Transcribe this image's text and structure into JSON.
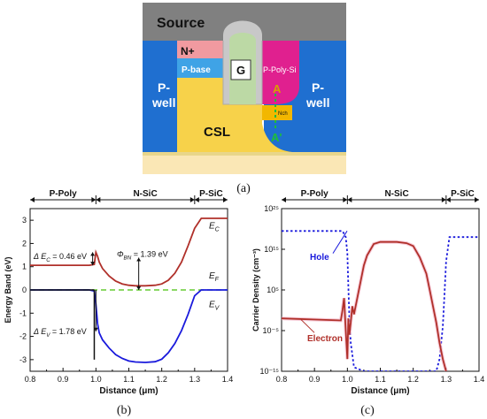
{
  "figure": {
    "sub_labels": {
      "a": "(a)",
      "b": "(b)",
      "c": "(c)"
    }
  },
  "device": {
    "labels": {
      "source": "Source",
      "n_plus": "N+",
      "p_base": "P-base",
      "gate": "G",
      "p_poly_si": "P-Poly-Si",
      "p_well_left": "P-\nwell",
      "p_well_right": "P-\nwell",
      "csl": "CSL",
      "nch": "Nch",
      "a_point": "A",
      "a_prime": "A'"
    },
    "colors": {
      "source": "#808080",
      "n_plus": "#f19aa0",
      "p_base": "#3fa3e6",
      "p_well": "#1f6fd0",
      "gate_oxide": "#c8c8c8",
      "gate": "#bcd9a5",
      "p_poly": "#e0208f",
      "csl": "#f7d24a",
      "drift": "#fae7b5",
      "nch": "#f2b700",
      "a_color": "#d6a000",
      "a_prime_color": "#1dbf3a"
    }
  },
  "chart_data": [
    {
      "type": "line",
      "panel": "b",
      "xlabel": "Distance (μm)",
      "ylabel": "Energy Band (eV)",
      "xlim": [
        0.8,
        1.4
      ],
      "ylim": [
        -3.5,
        3.5
      ],
      "xticks": [
        "0.8",
        "0.9",
        "1.0",
        "1.1",
        "1.2",
        "1.3",
        "1.4"
      ],
      "yticks": [
        "-3",
        "-2",
        "-1",
        "0",
        "1",
        "2",
        "3"
      ],
      "regions": [
        {
          "label": "P-Poly",
          "from": 0.8,
          "to": 1.0
        },
        {
          "label": "N-SiC",
          "from": 1.0,
          "to": 1.3
        },
        {
          "label": "P-SiC",
          "from": 1.3,
          "to": 1.4
        }
      ],
      "series": [
        {
          "name": "E_C",
          "color": "#b0302a",
          "x": [
            0.8,
            0.98,
            0.995,
            1.0,
            1.005,
            1.01,
            1.02,
            1.04,
            1.06,
            1.08,
            1.1,
            1.12,
            1.15,
            1.18,
            1.2,
            1.22,
            1.24,
            1.26,
            1.28,
            1.3,
            1.32,
            1.4
          ],
          "y": [
            1.06,
            1.06,
            1.1,
            1.62,
            1.45,
            1.2,
            0.92,
            0.6,
            0.38,
            0.26,
            0.2,
            0.18,
            0.18,
            0.2,
            0.26,
            0.42,
            0.72,
            1.2,
            1.9,
            2.65,
            3.08,
            3.08
          ]
        },
        {
          "name": "E_F",
          "color": "#66cc33",
          "x": [
            0.8,
            1.4
          ],
          "y": [
            0.0,
            0.0
          ]
        },
        {
          "name": "E_V",
          "color": "#1a1adc",
          "x": [
            0.8,
            0.98,
            0.995,
            1.0,
            1.005,
            1.01,
            1.02,
            1.04,
            1.06,
            1.08,
            1.1,
            1.12,
            1.15,
            1.18,
            1.2,
            1.22,
            1.24,
            1.26,
            1.28,
            1.3,
            1.32,
            1.4
          ],
          "y": [
            0.0,
            0.0,
            -0.05,
            -0.6,
            -1.45,
            -1.85,
            -2.15,
            -2.5,
            -2.78,
            -2.95,
            -3.06,
            -3.1,
            -3.12,
            -3.09,
            -2.98,
            -2.7,
            -2.3,
            -1.75,
            -1.05,
            -0.25,
            0.0,
            0.0
          ]
        }
      ],
      "annotations": {
        "delta_ec": "Δ E",
        "delta_ec_sub": "C",
        "delta_ec_val": " = 0.46 eV",
        "phi": "Φ",
        "phi_sub": "BN",
        "phi_val": " = 1.39 eV",
        "delta_ev": "Δ E",
        "delta_ev_sub": "V",
        "delta_ev_val": " = 1.78 eV",
        "ec_label": "E",
        "ec_sub": "C",
        "ef_label": "E",
        "ef_sub": "F",
        "ev_label": "E",
        "ev_sub": "V"
      }
    },
    {
      "type": "line",
      "panel": "c",
      "xlabel": "Distance (μm)",
      "ylabel": "Carrier Density (cm⁻³)",
      "yscale": "log",
      "xlim": [
        0.8,
        1.4
      ],
      "ylim_exp": [
        -15,
        25
      ],
      "xticks": [
        "0.8",
        "0.9",
        "1.0",
        "1.1",
        "1.2",
        "1.3",
        "1.4"
      ],
      "yticks": [
        "10⁻¹⁵",
        "10⁻⁵",
        "10⁵",
        "10¹⁵",
        "10²⁵"
      ],
      "regions": [
        {
          "label": "P-Poly",
          "from": 0.8,
          "to": 1.0
        },
        {
          "label": "N-SiC",
          "from": 1.0,
          "to": 1.3
        },
        {
          "label": "P-SiC",
          "from": 1.3,
          "to": 1.4
        }
      ],
      "series": [
        {
          "name": "Hole",
          "color": "#1a1adc",
          "dashed": true,
          "x": [
            0.8,
            0.985,
            0.995,
            1.0,
            1.003,
            1.006,
            1.01,
            1.02,
            1.05,
            1.25,
            1.27,
            1.28,
            1.29,
            1.295,
            1.3,
            1.31,
            1.4
          ],
          "y": [
            19.5,
            19.5,
            18.0,
            14,
            6,
            -2,
            -8,
            -14,
            -15,
            -15,
            -15,
            -12,
            -4,
            4,
            12,
            18,
            18
          ]
        },
        {
          "name": "Electron",
          "color": "#b0302a",
          "x": [
            0.8,
            0.98,
            0.985,
            0.99,
            0.995,
            1.0,
            1.003,
            1.006,
            1.01,
            1.015,
            1.02,
            1.03,
            1.04,
            1.05,
            1.06,
            1.08,
            1.1,
            1.15,
            1.18,
            1.2,
            1.22,
            1.24,
            1.25,
            1.26,
            1.27,
            1.28,
            1.29,
            1.3
          ],
          "y": [
            -2,
            -2.5,
            0,
            3,
            -5,
            -12,
            -2,
            -6,
            -3,
            1,
            -1,
            3,
            7,
            11,
            13.5,
            16.3,
            16.8,
            16.8,
            16.5,
            15.8,
            13,
            9,
            5,
            1,
            -3,
            -8,
            -12,
            -15
          ]
        }
      ],
      "annotations": {
        "hole": "Hole",
        "electron": "Electron"
      }
    }
  ]
}
